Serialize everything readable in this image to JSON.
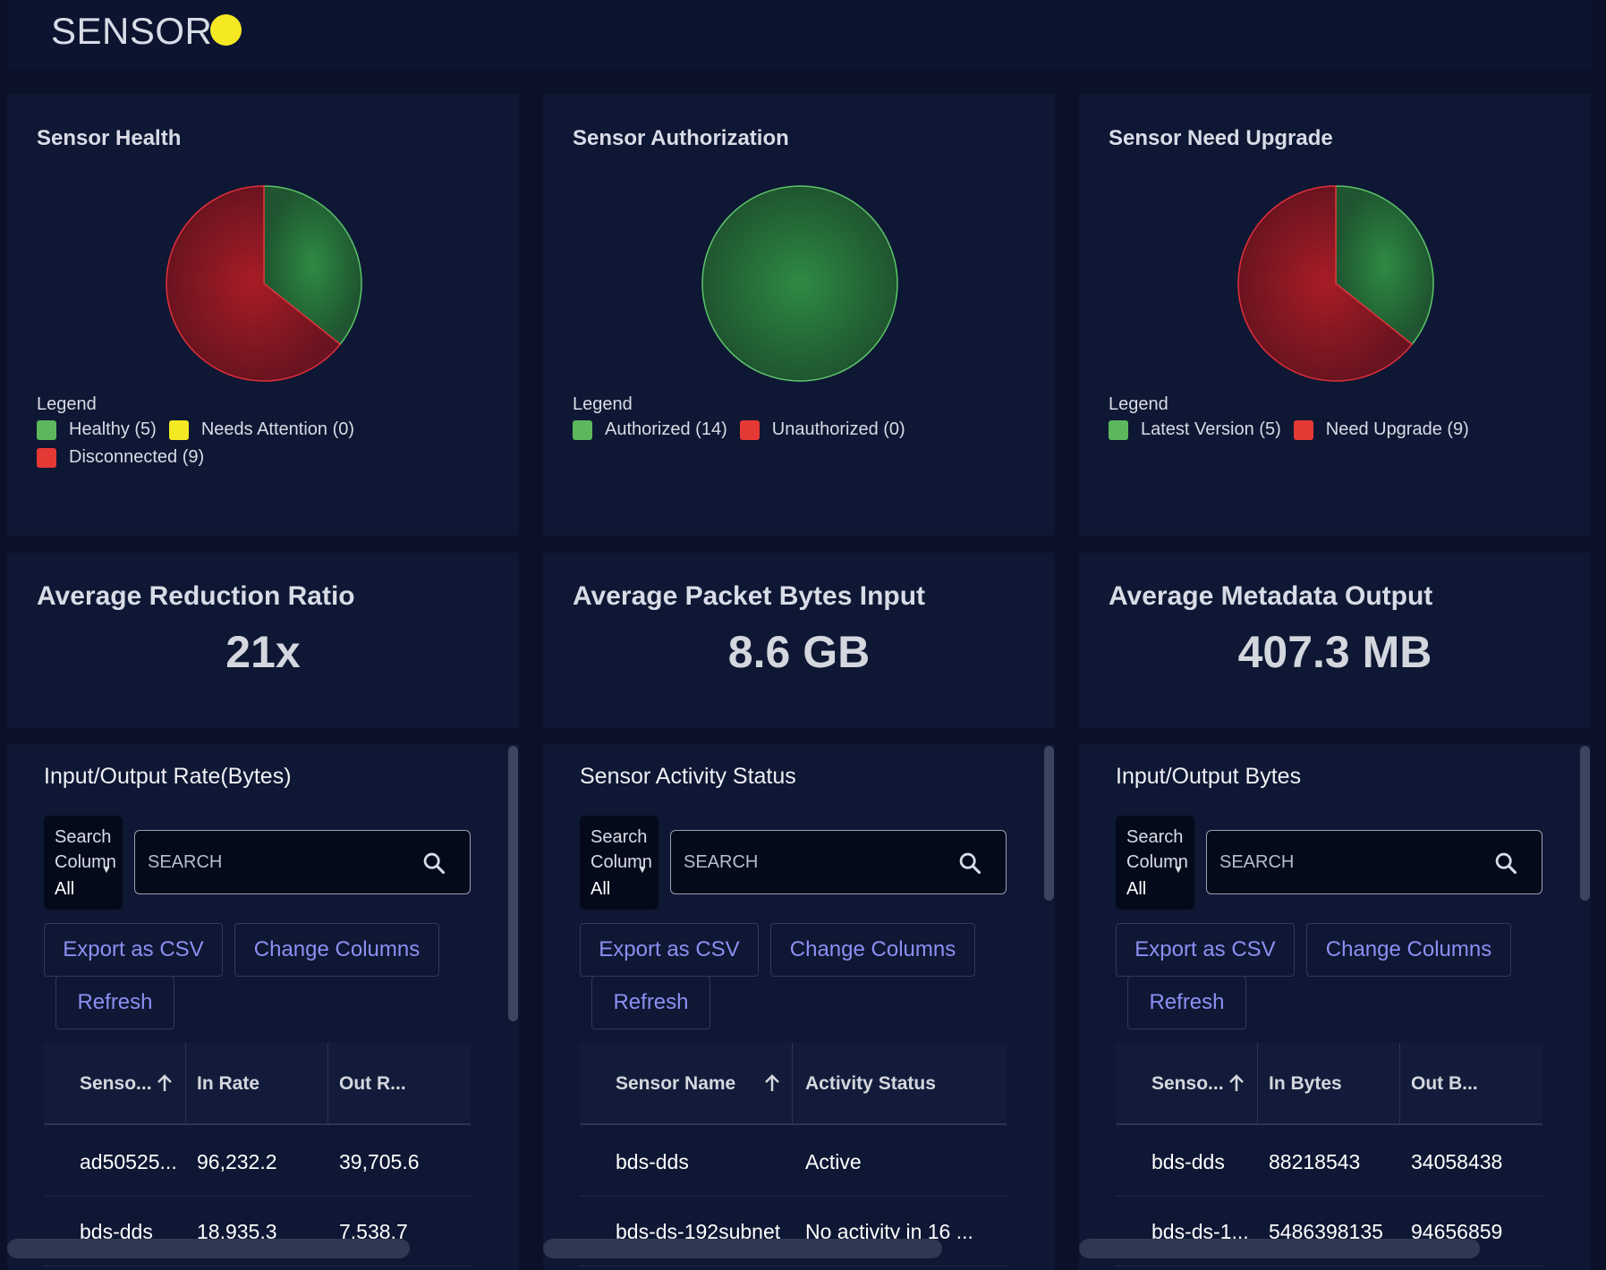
{
  "header": {
    "title": "SENSOR"
  },
  "colors": {
    "green": "#4caf50",
    "red": "#e53935",
    "yellow": "#f4e923",
    "accent": "#8c8ff3"
  },
  "health": {
    "title": "Sensor Health",
    "legend_title": "Legend",
    "legend": [
      {
        "label": "Healthy (5)",
        "color": "#5cb85c"
      },
      {
        "label": "Needs Attention (0)",
        "color": "#f4e923"
      },
      {
        "label": "Disconnected (9)",
        "color": "#e53935"
      }
    ],
    "slices": [
      {
        "name": "Healthy",
        "value": 5
      },
      {
        "name": "Needs Attention",
        "value": 0
      },
      {
        "name": "Disconnected",
        "value": 9
      }
    ]
  },
  "authorization": {
    "title": "Sensor Authorization",
    "legend_title": "Legend",
    "legend": [
      {
        "label": "Authorized (14)",
        "color": "#5cb85c"
      },
      {
        "label": "Unauthorized (0)",
        "color": "#e53935"
      }
    ],
    "slices": [
      {
        "name": "Authorized",
        "value": 14
      },
      {
        "name": "Unauthorized",
        "value": 0
      }
    ]
  },
  "upgrade": {
    "title": "Sensor Need Upgrade",
    "legend_title": "Legend",
    "legend": [
      {
        "label": "Latest Version (5)",
        "color": "#5cb85c"
      },
      {
        "label": "Need Upgrade (9)",
        "color": "#e53935"
      }
    ],
    "slices": [
      {
        "name": "Latest Version",
        "value": 5
      },
      {
        "name": "Need Upgrade",
        "value": 9
      }
    ]
  },
  "stats": {
    "reduction": {
      "title": "Average Reduction Ratio",
      "value": "21x"
    },
    "input": {
      "title": "Average Packet Bytes Input",
      "value": "8.6 GB"
    },
    "output": {
      "title": "Average Metadata Output",
      "value": "407.3 MB"
    }
  },
  "common": {
    "search_column_label": "Search Column",
    "search_column_value": "All",
    "search_placeholder": "SEARCH",
    "export_label": "Export as CSV",
    "change_columns_label": "Change Columns",
    "refresh_label": "Refresh"
  },
  "rate_table": {
    "title": "Input/Output Rate(Bytes)",
    "columns": [
      "Senso...",
      "In Rate",
      "Out R..."
    ],
    "rows": [
      [
        "ad50525...",
        "96,232.2",
        "39,705.6"
      ],
      [
        "bds-dds",
        "18,935.3",
        "7,538.7"
      ]
    ]
  },
  "activity_table": {
    "title": "Sensor Activity Status",
    "columns": [
      "Sensor Name",
      "Activity Status"
    ],
    "rows": [
      [
        "bds-dds",
        "Active"
      ],
      [
        "bds-ds-192subnet",
        "No activity in 16 ..."
      ]
    ]
  },
  "bytes_table": {
    "title": "Input/Output Bytes",
    "columns": [
      "Senso...",
      "In Bytes",
      "Out B..."
    ],
    "rows": [
      [
        "bds-dds",
        "88218543",
        "34058438"
      ],
      [
        "bds-ds-1...",
        "5486398135",
        "94656859"
      ]
    ]
  },
  "chart_data": [
    {
      "type": "pie",
      "title": "Sensor Health",
      "labels": [
        "Healthy",
        "Needs Attention",
        "Disconnected"
      ],
      "values": [
        5,
        0,
        9
      ]
    },
    {
      "type": "pie",
      "title": "Sensor Authorization",
      "labels": [
        "Authorized",
        "Unauthorized"
      ],
      "values": [
        14,
        0
      ]
    },
    {
      "type": "pie",
      "title": "Sensor Need Upgrade",
      "labels": [
        "Latest Version",
        "Need Upgrade"
      ],
      "values": [
        5,
        9
      ]
    }
  ]
}
